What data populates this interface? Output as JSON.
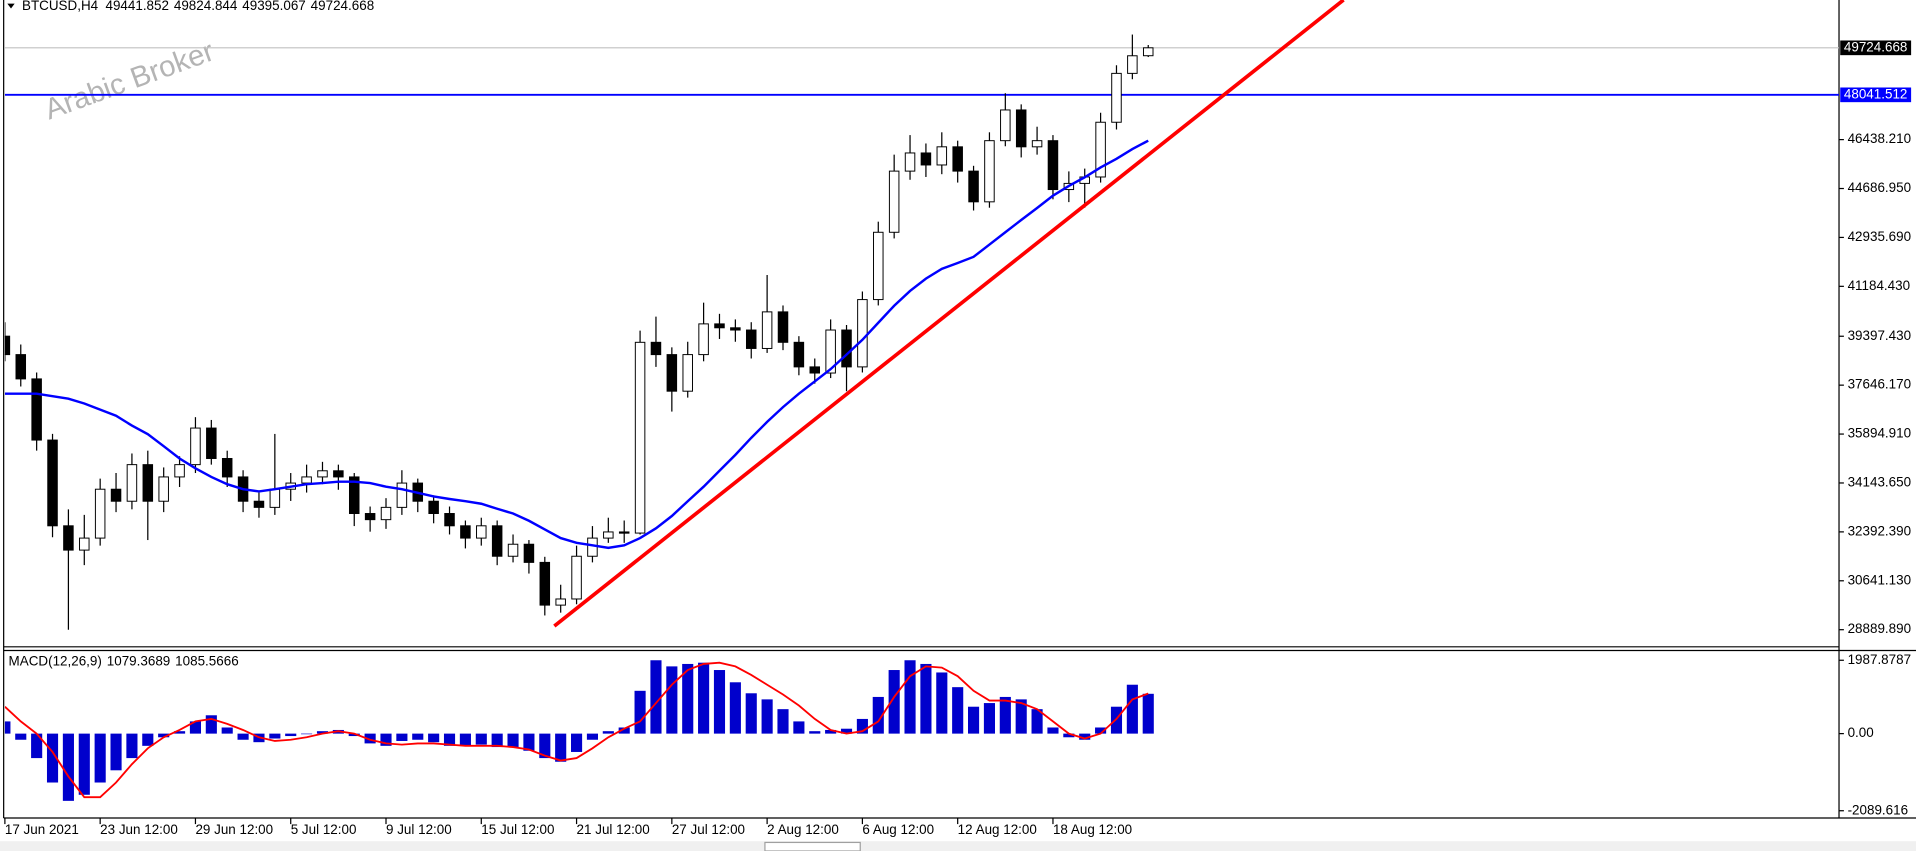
{
  "chart_data": [
    {
      "type": "candlestick",
      "title": "BTCUSD,H4",
      "header_values": [
        49441.852,
        49824.844,
        49395.067,
        49724.668
      ],
      "watermark": "Arabic Broker",
      "ohlc": [
        [
          39400,
          39900,
          38500,
          38740
        ],
        [
          38740,
          39100,
          37600,
          37870
        ],
        [
          37870,
          38100,
          35300,
          35680
        ],
        [
          35680,
          35900,
          32200,
          32610
        ],
        [
          32610,
          33200,
          28890,
          31740
        ],
        [
          31740,
          33000,
          31200,
          32170
        ],
        [
          32170,
          34300,
          31900,
          33920
        ],
        [
          33920,
          34500,
          33100,
          33490
        ],
        [
          33490,
          35200,
          33200,
          34800
        ],
        [
          34800,
          35300,
          32100,
          33490
        ],
        [
          33490,
          34700,
          33100,
          34360
        ],
        [
          34360,
          35100,
          34000,
          34800
        ],
        [
          34800,
          36500,
          34500,
          36110
        ],
        [
          36110,
          36400,
          34800,
          35020
        ],
        [
          35020,
          35300,
          34000,
          34360
        ],
        [
          34360,
          34600,
          33100,
          33490
        ],
        [
          33490,
          33800,
          32900,
          33270
        ],
        [
          33270,
          35900,
          33000,
          33920
        ],
        [
          33920,
          34500,
          33500,
          34140
        ],
        [
          34140,
          34800,
          33800,
          34360
        ],
        [
          34360,
          34900,
          34100,
          34580
        ],
        [
          34580,
          34800,
          33900,
          34360
        ],
        [
          34360,
          34500,
          32600,
          33050
        ],
        [
          33050,
          33300,
          32400,
          32830
        ],
        [
          32830,
          33600,
          32500,
          33270
        ],
        [
          33270,
          34600,
          33000,
          34140
        ],
        [
          34140,
          34300,
          33100,
          33490
        ],
        [
          33490,
          33700,
          32700,
          33050
        ],
        [
          33050,
          33300,
          32300,
          32610
        ],
        [
          32610,
          32800,
          31800,
          32170
        ],
        [
          32170,
          32900,
          31900,
          32610
        ],
        [
          32610,
          32800,
          31200,
          31520
        ],
        [
          31520,
          32300,
          31300,
          31950
        ],
        [
          31950,
          32100,
          30900,
          31300
        ],
        [
          31300,
          31500,
          29400,
          29770
        ],
        [
          29770,
          30500,
          29500,
          29990
        ],
        [
          29990,
          31900,
          29800,
          31520
        ],
        [
          31520,
          32600,
          31300,
          32170
        ],
        [
          32170,
          32900,
          32000,
          32390
        ],
        [
          32390,
          32800,
          32000,
          32350
        ],
        [
          32350,
          39600,
          32300,
          39180
        ],
        [
          39180,
          40100,
          38300,
          38740
        ],
        [
          38740,
          39000,
          36700,
          37430
        ],
        [
          37430,
          39200,
          37200,
          38740
        ],
        [
          38740,
          40600,
          38500,
          39840
        ],
        [
          39840,
          40200,
          39300,
          39700
        ],
        [
          39700,
          40000,
          39200,
          39620
        ],
        [
          39620,
          39900,
          38600,
          38960
        ],
        [
          38960,
          41590,
          38800,
          40270
        ],
        [
          40270,
          40500,
          38900,
          39180
        ],
        [
          39180,
          39400,
          38000,
          38300
        ],
        [
          38300,
          38600,
          37700,
          38080
        ],
        [
          38080,
          40000,
          37900,
          39620
        ],
        [
          39620,
          39800,
          37430,
          38300
        ],
        [
          38300,
          41000,
          38100,
          40710
        ],
        [
          40710,
          43500,
          40500,
          43120
        ],
        [
          43120,
          45900,
          42900,
          45310
        ],
        [
          45310,
          46600,
          45000,
          45960
        ],
        [
          45960,
          46300,
          45100,
          45530
        ],
        [
          45530,
          46700,
          45200,
          46180
        ],
        [
          46180,
          46400,
          44900,
          45310
        ],
        [
          45310,
          45500,
          43900,
          44210
        ],
        [
          44210,
          46700,
          44000,
          46400
        ],
        [
          46400,
          48100,
          46200,
          47500
        ],
        [
          47500,
          47700,
          45800,
          46180
        ],
        [
          46180,
          46900,
          45900,
          46400
        ],
        [
          46400,
          46600,
          44300,
          44650
        ],
        [
          44650,
          45300,
          44200,
          44870
        ],
        [
          44870,
          45400,
          44000,
          45100
        ],
        [
          45100,
          47400,
          44900,
          47060
        ],
        [
          47060,
          49100,
          46800,
          48810
        ],
        [
          48810,
          50200,
          48600,
          49440
        ],
        [
          49442,
          49825,
          49395,
          49725
        ]
      ],
      "moving_average": {
        "color": "#0000ff",
        "values": [
          37340,
          37340,
          37340,
          37250,
          37160,
          36990,
          36770,
          36550,
          36200,
          35890,
          35460,
          35020,
          34670,
          34360,
          34100,
          33920,
          33840,
          33920,
          34010,
          34100,
          34140,
          34190,
          34190,
          34140,
          34010,
          33920,
          33790,
          33660,
          33570,
          33490,
          33400,
          33220,
          33050,
          32790,
          32480,
          32170,
          32000,
          31910,
          31820,
          31910,
          32170,
          32520,
          32960,
          33490,
          34010,
          34580,
          35150,
          35760,
          36330,
          36860,
          37340,
          37780,
          38220,
          38740,
          39270,
          39880,
          40490,
          41020,
          41460,
          41810,
          42020,
          42240,
          42680,
          43120,
          43560,
          43990,
          44430,
          44780,
          45090,
          45440,
          45750,
          46100,
          46400
        ]
      },
      "trendline": {
        "color": "#ff0000",
        "x": [
          34.6,
          84.3
        ],
        "values": [
          29020,
          51440
        ]
      },
      "hlines": [
        {
          "value": 49724.668,
          "color": "#c0c0c0",
          "label_color": "#000000"
        },
        {
          "value": 48041.512,
          "color": "#0000ff",
          "label_color": "#0000ff"
        }
      ],
      "ylim": [
        28321,
        51437
      ],
      "yticks": [
        {
          "value": 46438.21,
          "label": "46438.210"
        },
        {
          "value": 44686.95,
          "label": "44686.950"
        },
        {
          "value": 42935.69,
          "label": "42935.690"
        },
        {
          "value": 41184.43,
          "label": "41184.430"
        },
        {
          "value": 39397.43,
          "label": "39397.430"
        },
        {
          "value": 37646.17,
          "label": "37646.170"
        },
        {
          "value": 35894.91,
          "label": "35894.910"
        },
        {
          "value": 34143.65,
          "label": "34143.650"
        },
        {
          "value": 32392.39,
          "label": "32392.390"
        },
        {
          "value": 30641.13,
          "label": "30641.130"
        },
        {
          "value": 28889.89,
          "label": "28889.890"
        }
      ],
      "xlim": [
        0,
        115.5
      ],
      "xticks": [
        {
          "value": 0,
          "label": "17 Jun 2021"
        },
        {
          "value": 6,
          "label": "23 Jun 12:00"
        },
        {
          "value": 12,
          "label": "29 Jun 12:00"
        },
        {
          "value": 18,
          "label": "5 Jul 12:00"
        },
        {
          "value": 24,
          "label": "9 Jul 12:00"
        },
        {
          "value": 30,
          "label": "15 Jul 12:00"
        },
        {
          "value": 36,
          "label": "21 Jul 12:00"
        },
        {
          "value": 42,
          "label": "27 Jul 12:00"
        },
        {
          "value": 48,
          "label": "2 Aug 12:00"
        },
        {
          "value": 54,
          "label": "6 Aug 12:00"
        },
        {
          "value": 60,
          "label": "12 Aug 12:00"
        },
        {
          "value": 66,
          "label": "18 Aug 12:00"
        }
      ]
    },
    {
      "type": "macd",
      "title": "MACD(12,26,9)",
      "header_values": [
        1079.3689,
        1085.5666
      ],
      "histogram": {
        "color": "#0000cc",
        "values": [
          331,
          -166,
          -663,
          -1325,
          -1822,
          -1657,
          -1325,
          -994,
          -663,
          -331,
          -99,
          66,
          331,
          497,
          166,
          -166,
          -232,
          -133,
          -66,
          0,
          66,
          99,
          -66,
          -265,
          -331,
          -199,
          -166,
          -232,
          -331,
          -331,
          -298,
          -364,
          -364,
          -464,
          -663,
          -762,
          -497,
          -166,
          66,
          166,
          1160,
          1988,
          1822,
          1888,
          1922,
          1723,
          1391,
          1093,
          928,
          663,
          331,
          66,
          99,
          133,
          398,
          994,
          1723,
          1988,
          1888,
          1657,
          1259,
          729,
          828,
          994,
          928,
          663,
          166,
          -99,
          -166,
          166,
          729,
          1325,
          1079
        ]
      },
      "signal": {
        "color": "#ff0000",
        "values": [
          729,
          331,
          0,
          -497,
          -1160,
          -1723,
          -1723,
          -1325,
          -828,
          -398,
          -99,
          99,
          331,
          398,
          265,
          99,
          -99,
          -199,
          -166,
          -99,
          0,
          66,
          0,
          -166,
          -265,
          -298,
          -265,
          -265,
          -298,
          -331,
          -331,
          -331,
          -364,
          -431,
          -596,
          -729,
          -663,
          -398,
          -99,
          133,
          331,
          828,
          1325,
          1723,
          1888,
          1922,
          1822,
          1590,
          1325,
          1060,
          762,
          398,
          99,
          0,
          66,
          331,
          994,
          1557,
          1822,
          1789,
          1557,
          1160,
          895,
          895,
          828,
          663,
          331,
          0,
          -133,
          0,
          398,
          928,
          1086
        ]
      },
      "ylim": [
        -2253,
        2253
      ],
      "yticks": [
        1987.8787,
        {
          "value": 0,
          "label": "0.00"
        },
        -2089.616
      ]
    }
  ]
}
